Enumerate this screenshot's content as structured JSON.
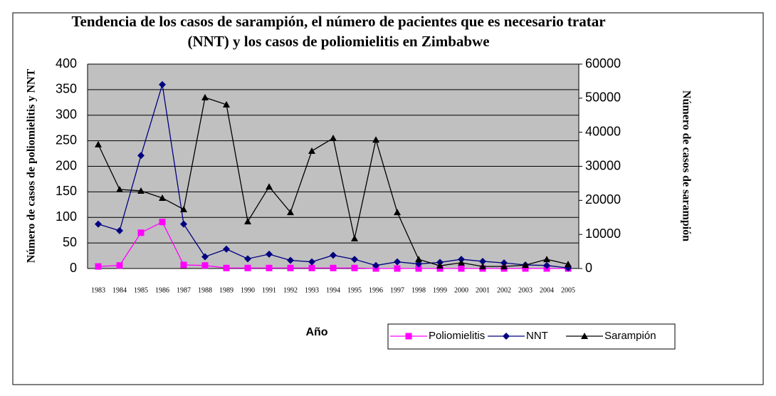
{
  "chart_data": {
    "type": "line",
    "title": "Tendencia de los casos de sarampión, el número de pacientes que es necesario tratar (NNT) y los casos de poliomielitis en Zimbabwe",
    "x_label": "Año",
    "y_label": "Número de casos de poliomielitis y NNT",
    "y2_label": "Número de casos de sarampión",
    "categories": [
      "1983",
      "1984",
      "1985",
      "1986",
      "1987",
      "1988",
      "1989",
      "1990",
      "1991",
      "1992",
      "1993",
      "1994",
      "1995",
      "1996",
      "1997",
      "1998",
      "1999",
      "2000",
      "2001",
      "2002",
      "2003",
      "2004",
      "2005"
    ],
    "ylim": [
      0,
      400
    ],
    "yticks": [
      0,
      50,
      100,
      150,
      200,
      250,
      300,
      350,
      400
    ],
    "y2lim": [
      0,
      60000
    ],
    "y2ticks": [
      0,
      10000,
      20000,
      30000,
      40000,
      50000,
      60000
    ],
    "grid": true,
    "background": "#c0c0c0",
    "series": [
      {
        "name": "Poliomielitis",
        "color": "#ff00ff",
        "marker": "square",
        "values": [
          4,
          6,
          70,
          91,
          7,
          6,
          1,
          1,
          1,
          1,
          1,
          1,
          1,
          0,
          0,
          0,
          0,
          0,
          0,
          0,
          0,
          0,
          0
        ]
      },
      {
        "name": "NNT",
        "color": "#000080",
        "marker": "diamond",
        "values": [
          87,
          74,
          221,
          360,
          87,
          23,
          38,
          19,
          28,
          16,
          13,
          26,
          18,
          6,
          13,
          9,
          12,
          18,
          14,
          11,
          7,
          6,
          1
        ]
      },
      {
        "name": "Sarampión",
        "color": "#000000",
        "marker": "triangle",
        "axis": "y2",
        "values": [
          36400,
          23200,
          22800,
          20700,
          17350,
          50200,
          48100,
          13800,
          24000,
          16500,
          34500,
          38250,
          8800,
          37800,
          16500,
          2700,
          800,
          1700,
          600,
          600,
          1000,
          2700,
          1250
        ]
      }
    ]
  }
}
